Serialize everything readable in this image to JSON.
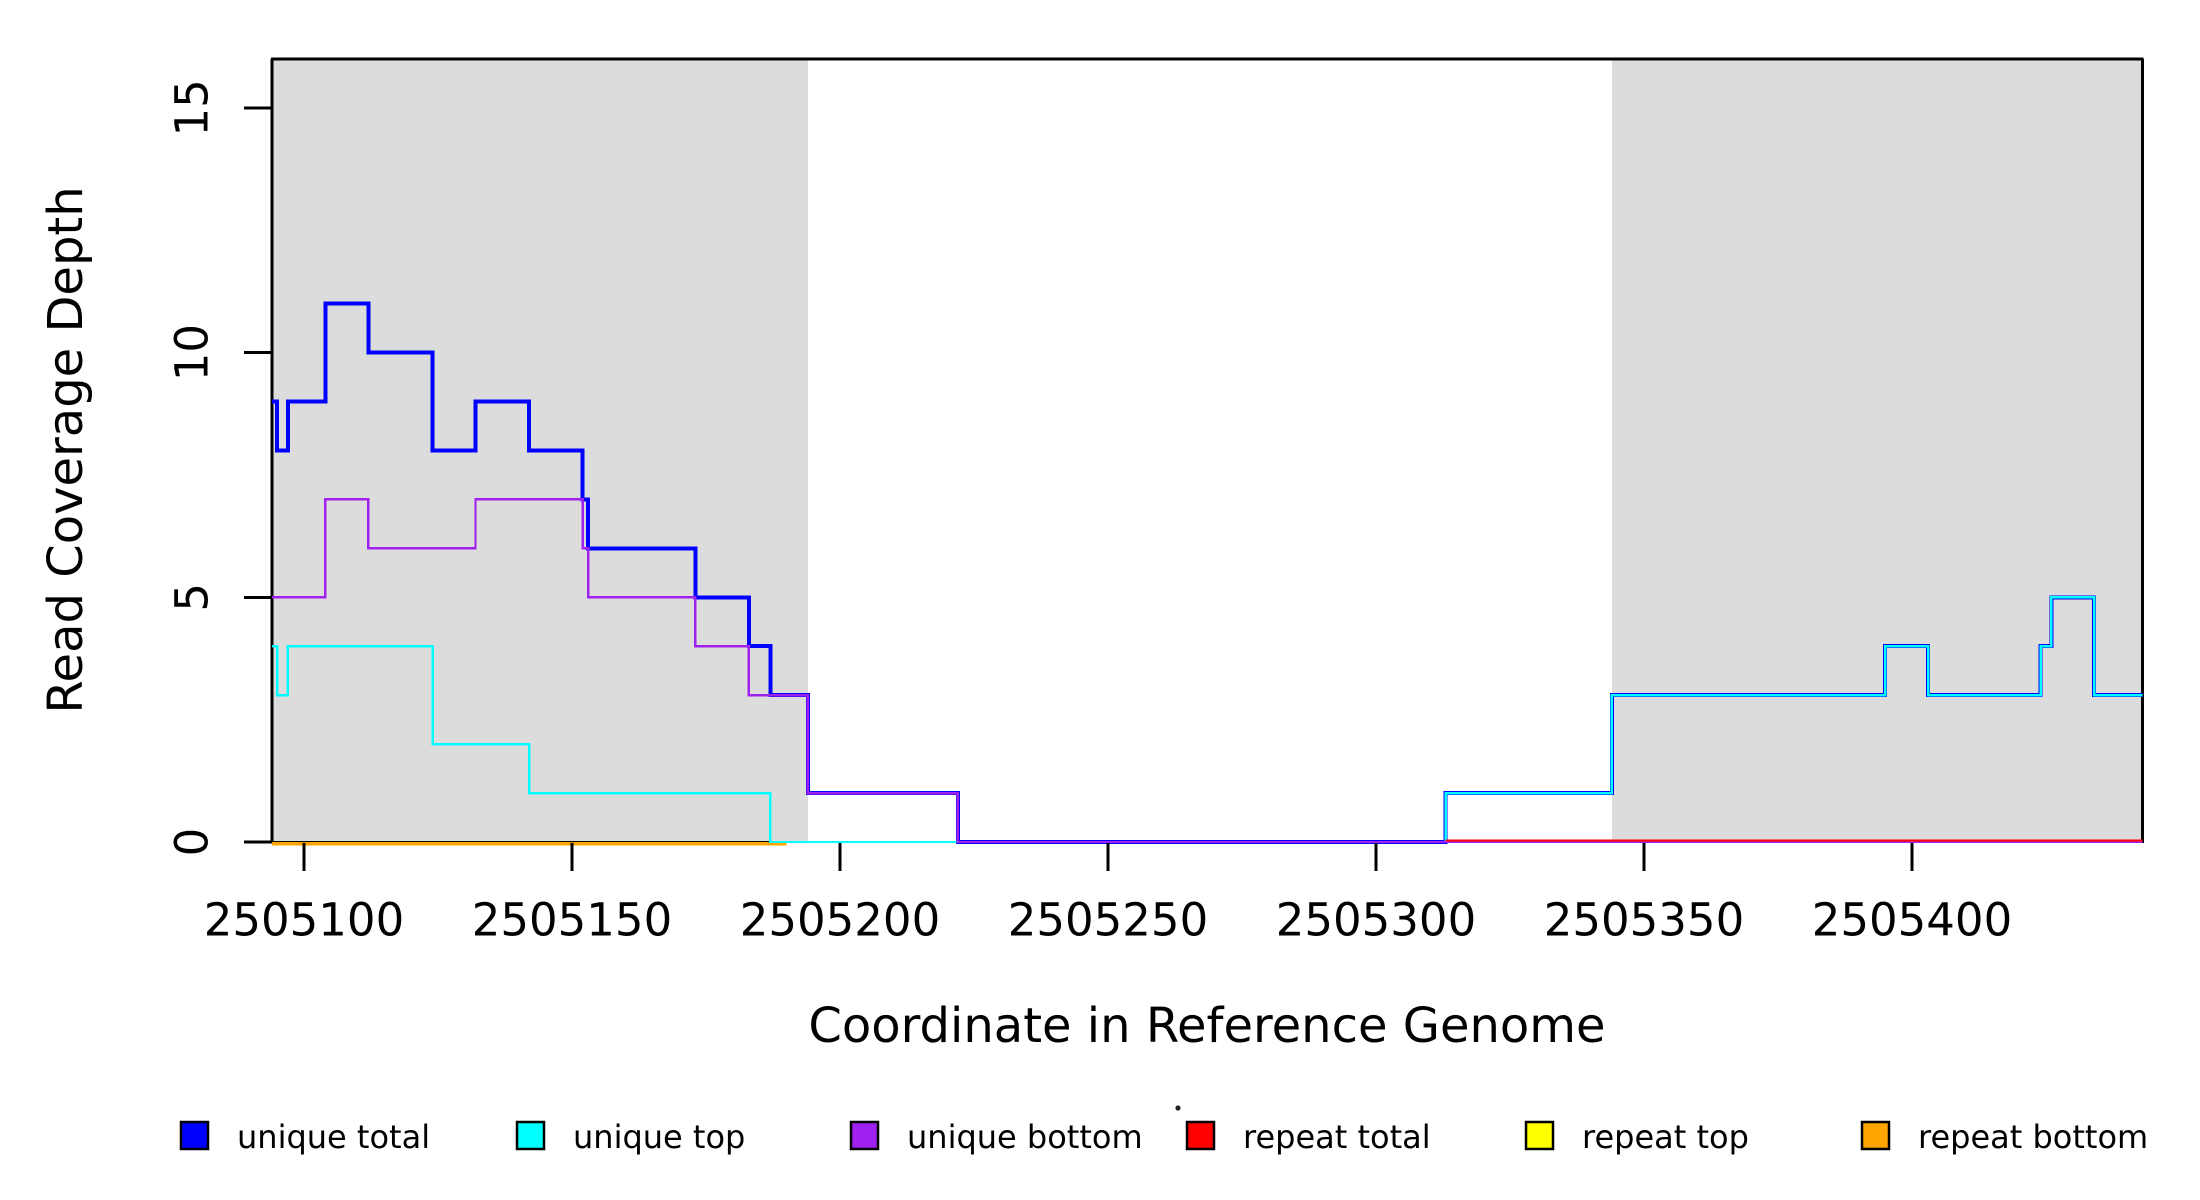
{
  "figure": {
    "background": "#FFFFFF",
    "box_color": "#000000",
    "shade_color": "#DCDCDC"
  },
  "chart_data": {
    "type": "line",
    "subtype": "step-coverage-plot",
    "title": "",
    "xlabel": "Coordinate in Reference Genome",
    "ylabel": "Read Coverage Depth",
    "xlim": [
      2505094,
      2505443
    ],
    "ylim": [
      0,
      16
    ],
    "grid": false,
    "legend_position": "bottom",
    "x_ticks": [
      2505100,
      2505150,
      2505200,
      2505250,
      2505300,
      2505350,
      2505400
    ],
    "y_ticks": [
      0,
      5,
      10,
      15
    ],
    "shaded_regions": [
      {
        "name": "repeat-region-left",
        "from": 2505094,
        "to": 2505194
      },
      {
        "name": "repeat-region-right",
        "from": 2505344,
        "to": 2505443
      }
    ],
    "series": [
      {
        "name": "unique total",
        "color": "#0000FF",
        "width": 4,
        "points": [
          [
            2505094,
            9
          ],
          [
            2505095,
            8
          ],
          [
            2505097,
            9
          ],
          [
            2505104,
            11
          ],
          [
            2505112,
            10
          ],
          [
            2505124,
            8
          ],
          [
            2505132,
            9
          ],
          [
            2505142,
            8
          ],
          [
            2505152,
            7
          ],
          [
            2505153,
            6
          ],
          [
            2505173,
            5
          ],
          [
            2505183,
            4
          ],
          [
            2505187,
            3
          ],
          [
            2505194,
            1
          ],
          [
            2505222,
            0
          ],
          [
            2505313,
            1
          ],
          [
            2505344,
            3
          ],
          [
            2505395,
            4
          ],
          [
            2505403,
            3
          ],
          [
            2505424,
            4
          ],
          [
            2505426,
            5
          ],
          [
            2505434,
            3
          ],
          [
            2505443,
            3
          ]
        ]
      },
      {
        "name": "unique top",
        "color": "#00FFFF",
        "width": 2.4,
        "points": [
          [
            2505094,
            4
          ],
          [
            2505095,
            3
          ],
          [
            2505097,
            4
          ],
          [
            2505124,
            2
          ],
          [
            2505142,
            1
          ],
          [
            2505187,
            0
          ],
          [
            2505313,
            1
          ],
          [
            2505344,
            3
          ],
          [
            2505395,
            4
          ],
          [
            2505403,
            3
          ],
          [
            2505424,
            4
          ],
          [
            2505426,
            5
          ],
          [
            2505434,
            3
          ],
          [
            2505443,
            3
          ]
        ]
      },
      {
        "name": "unique bottom",
        "color": "#A020F0",
        "width": 2.4,
        "points": [
          [
            2505094,
            5
          ],
          [
            2505104,
            7
          ],
          [
            2505112,
            6
          ],
          [
            2505132,
            7
          ],
          [
            2505152,
            6
          ],
          [
            2505153,
            5
          ],
          [
            2505173,
            4
          ],
          [
            2505183,
            3
          ],
          [
            2505194,
            1
          ],
          [
            2505222,
            0
          ],
          [
            2505443,
            0
          ]
        ]
      },
      {
        "name": "repeat total",
        "color": "#FF0000",
        "width": 2.2,
        "points": [
          [
            2505094,
            0
          ],
          [
            2505443,
            0
          ]
        ],
        "visible_from": 2505313,
        "y_offset": -1.6
      },
      {
        "name": "repeat top",
        "color": "#FFFF00",
        "width": 2.2,
        "points": [
          [
            2505094,
            0
          ],
          [
            2505443,
            0
          ]
        ],
        "hidden_behind_others": true
      },
      {
        "name": "repeat bottom",
        "color": "#FFA500",
        "width": 3.6,
        "points": [
          [
            2505094,
            0
          ],
          [
            2505443,
            0
          ]
        ],
        "visible_to": 2505190,
        "y_offset": 1.6
      }
    ],
    "legend": [
      {
        "label": "unique total",
        "color": "#0000FF"
      },
      {
        "label": "unique top",
        "color": "#00FFFF"
      },
      {
        "label": "unique bottom",
        "color": "#A020F0"
      },
      {
        "label": "repeat total",
        "color": "#FF0000"
      },
      {
        "label": "repeat top",
        "color": "#FFFF00"
      },
      {
        "label": "repeat bottom",
        "color": "#FFA500"
      }
    ]
  }
}
